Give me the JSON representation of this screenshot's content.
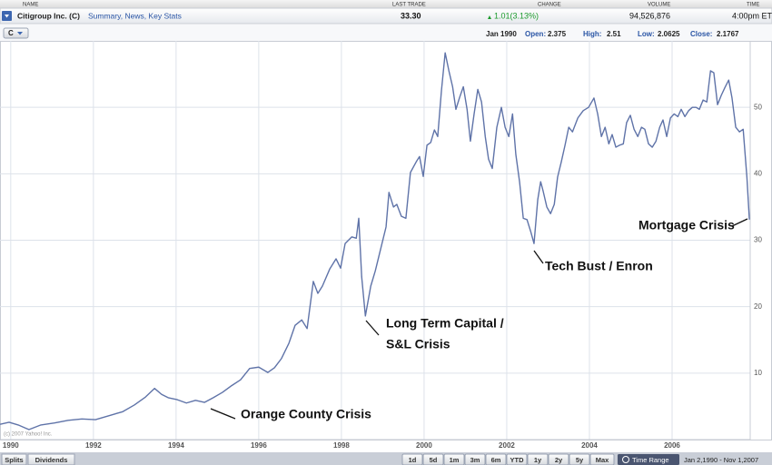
{
  "header": {
    "columns": [
      "NAME",
      "LAST TRADE",
      "CHANGE",
      "VOLUME",
      "TIME"
    ],
    "name": "Citigroup Inc. (C)",
    "links": "Summary, News, Key Stats",
    "last_trade": "33.30",
    "change": "1.01(3.13%)",
    "volume": "94,526,876",
    "time": "4:00pm ET"
  },
  "quote_bar": {
    "symbol": "C",
    "date": "Jan 1990",
    "fields": [
      {
        "label": "Open:",
        "value": "2.375"
      },
      {
        "label": "High:",
        "value": "2.51"
      },
      {
        "label": "Low:",
        "value": "2.0625"
      },
      {
        "label": "Close:",
        "value": "2.1767"
      }
    ]
  },
  "chart_data": {
    "type": "line",
    "color": "#5f73a8",
    "grid": true,
    "xlim": [
      1989.74,
      2007.89
    ],
    "ylim": [
      0,
      60
    ],
    "xticks": [
      1990,
      1992,
      1994,
      1996,
      1998,
      2000,
      2002,
      2004,
      2006
    ],
    "yticks": [
      10,
      20,
      30,
      40,
      50
    ],
    "x": [
      1989.74,
      1989.96,
      1990.18,
      1990.44,
      1990.73,
      1991.06,
      1991.39,
      1991.72,
      1992.05,
      1992.38,
      1992.71,
      1992.99,
      1993.26,
      1993.48,
      1993.65,
      1993.81,
      1994.03,
      1994.25,
      1994.47,
      1994.69,
      1994.9,
      1995.12,
      1995.34,
      1995.56,
      1995.78,
      1996.0,
      1996.22,
      1996.38,
      1996.55,
      1996.73,
      1996.88,
      1997.04,
      1997.17,
      1997.32,
      1997.43,
      1997.54,
      1997.72,
      1997.87,
      1997.98,
      1998.09,
      1998.25,
      1998.36,
      1998.42,
      1998.49,
      1998.58,
      1998.71,
      1998.82,
      1998.97,
      1999.08,
      1999.15,
      1999.26,
      1999.34,
      1999.45,
      1999.56,
      1999.67,
      1999.81,
      1999.89,
      1999.98,
      2000.07,
      2000.16,
      2000.25,
      2000.33,
      2000.42,
      2000.51,
      2000.6,
      2000.69,
      2000.77,
      2000.86,
      2000.95,
      2001.04,
      2001.12,
      2001.21,
      2001.3,
      2001.39,
      2001.48,
      2001.56,
      2001.65,
      2001.76,
      2001.87,
      2001.96,
      2002.05,
      2002.14,
      2002.22,
      2002.31,
      2002.4,
      2002.49,
      2002.58,
      2002.66,
      2002.75,
      2002.82,
      2002.88,
      2002.97,
      2003.06,
      2003.15,
      2003.23,
      2003.32,
      2003.41,
      2003.5,
      2003.59,
      2003.72,
      2003.85,
      2003.98,
      2004.11,
      2004.2,
      2004.29,
      2004.38,
      2004.47,
      2004.55,
      2004.64,
      2004.73,
      2004.82,
      2004.9,
      2004.99,
      2005.08,
      2005.17,
      2005.26,
      2005.34,
      2005.43,
      2005.52,
      2005.61,
      2005.7,
      2005.78,
      2005.87,
      2005.96,
      2006.05,
      2006.14,
      2006.22,
      2006.31,
      2006.4,
      2006.49,
      2006.58,
      2006.66,
      2006.75,
      2006.84,
      2006.93,
      2007.01,
      2007.1,
      2007.19,
      2007.28,
      2007.37,
      2007.45,
      2007.54,
      2007.63,
      2007.72,
      2007.81,
      2007.87
    ],
    "values": [
      2.3,
      2.6,
      2.2,
      1.5,
      2.2,
      2.5,
      2.9,
      3.1,
      3.0,
      3.6,
      4.2,
      5.2,
      6.4,
      7.7,
      6.8,
      6.3,
      6.0,
      5.5,
      5.9,
      5.6,
      6.3,
      7.1,
      8.1,
      9.0,
      10.7,
      10.9,
      10.1,
      10.8,
      12.2,
      14.5,
      17.2,
      18.0,
      16.7,
      23.8,
      22.0,
      23.1,
      25.7,
      27.2,
      25.8,
      29.5,
      30.5,
      30.3,
      33.3,
      24.5,
      18.6,
      23.1,
      25.4,
      29.2,
      32.0,
      37.2,
      35.0,
      35.4,
      33.6,
      33.3,
      40.2,
      41.8,
      42.6,
      39.6,
      44.3,
      44.7,
      46.6,
      45.6,
      52.5,
      58.2,
      55.5,
      53.1,
      49.7,
      51.5,
      53.1,
      49.7,
      44.9,
      49.0,
      52.7,
      50.8,
      45.6,
      42.2,
      40.8,
      47.0,
      50.0,
      47.0,
      45.6,
      49.0,
      42.9,
      38.8,
      33.3,
      33.1,
      31.3,
      29.5,
      36.1,
      38.8,
      37.4,
      35.0,
      34.0,
      35.4,
      39.5,
      41.8,
      44.3,
      47.0,
      46.3,
      48.4,
      49.5,
      50.0,
      51.4,
      49.0,
      45.6,
      47.0,
      44.5,
      45.9,
      44.0,
      44.3,
      44.5,
      47.7,
      48.8,
      46.7,
      45.6,
      47.0,
      46.7,
      44.5,
      44.0,
      44.9,
      47.0,
      48.1,
      45.6,
      48.4,
      49.0,
      48.6,
      49.7,
      48.6,
      49.5,
      50.0,
      50.0,
      49.7,
      51.1,
      50.8,
      55.5,
      55.2,
      50.4,
      51.8,
      53.0,
      54.1,
      51.4,
      47.0,
      46.3,
      46.7,
      39.5,
      33.1
    ],
    "annotations": [
      {
        "lines": [
          "Orange County Crisis"
        ]
      },
      {
        "lines": [
          "Long Term Capital /",
          "S&L Crisis"
        ]
      },
      {
        "lines": [
          "Tech Bust / Enron"
        ]
      },
      {
        "lines": [
          "Mortgage Crisis"
        ]
      }
    ],
    "copyright": "(c) 2007 Yahoo! Inc."
  },
  "toolbar": {
    "tabs": [
      "Splits",
      "Dividends"
    ],
    "ranges": [
      "1d",
      "5d",
      "1m",
      "3m",
      "6m",
      "YTD",
      "1y",
      "2y",
      "5y",
      "Max"
    ],
    "time_range": "Time Range",
    "date_range": "Jan 2,1990 - Nov 1,2007"
  }
}
